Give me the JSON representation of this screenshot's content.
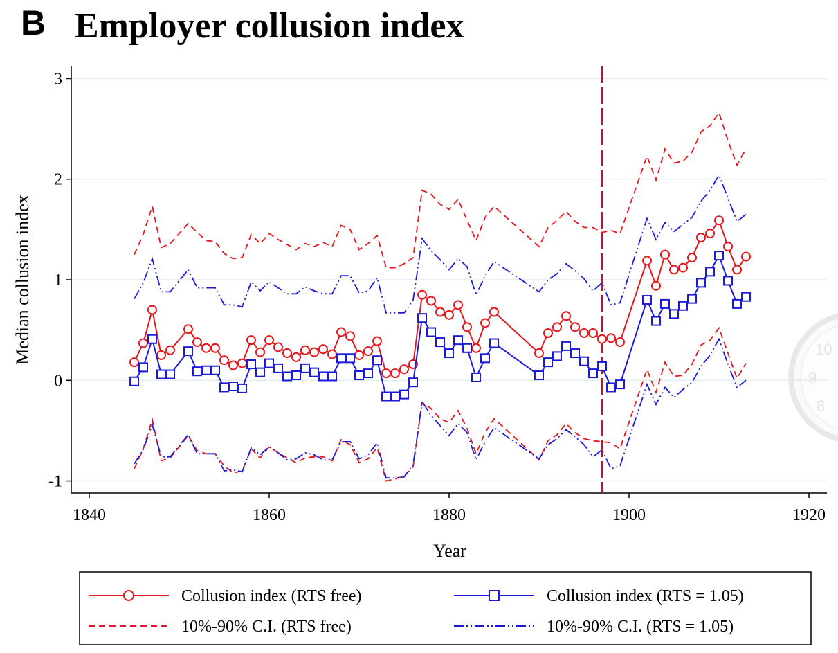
{
  "panel_letter": "B",
  "title": "Employer collusion index",
  "chart_data": {
    "type": "line",
    "title": "Employer collusion index",
    "xlabel": "Year",
    "ylabel": "Median collusion index",
    "xlim": [
      1838,
      1922
    ],
    "ylim": [
      -1.12,
      3.12
    ],
    "xticks": [
      1840,
      1860,
      1880,
      1900,
      1920
    ],
    "yticks": [
      -1,
      0,
      1,
      2,
      3
    ],
    "grid": "horizontal",
    "reference_line": {
      "x": 1897,
      "style": "dashed",
      "color": "#c8102e"
    },
    "legend_position": "bottom",
    "x": [
      1845,
      1846,
      1847,
      1848,
      1849,
      1851,
      1852,
      1853,
      1854,
      1855,
      1856,
      1857,
      1858,
      1859,
      1860,
      1861,
      1862,
      1863,
      1864,
      1865,
      1866,
      1867,
      1868,
      1869,
      1870,
      1871,
      1872,
      1873,
      1874,
      1875,
      1876,
      1877,
      1878,
      1879,
      1880,
      1881,
      1882,
      1883,
      1884,
      1885,
      1890,
      1891,
      1892,
      1893,
      1894,
      1895,
      1896,
      1897,
      1898,
      1899,
      1902,
      1903,
      1904,
      1905,
      1906,
      1907,
      1908,
      1909,
      1910,
      1911,
      1912,
      1913
    ],
    "series": [
      {
        "name": "Collusion index (RTS free)",
        "color": "#e8151b",
        "style": "solid",
        "marker": "circle",
        "values": [
          0.18,
          0.37,
          0.7,
          0.25,
          0.3,
          0.51,
          0.38,
          0.32,
          0.32,
          0.2,
          0.15,
          0.17,
          0.4,
          0.28,
          0.4,
          0.33,
          0.27,
          0.23,
          0.3,
          0.28,
          0.31,
          0.26,
          0.48,
          0.44,
          0.25,
          0.29,
          0.39,
          0.07,
          0.07,
          0.11,
          0.16,
          0.85,
          0.79,
          0.68,
          0.65,
          0.75,
          0.53,
          0.32,
          0.57,
          0.68,
          0.27,
          0.47,
          0.53,
          0.64,
          0.53,
          0.47,
          0.47,
          0.41,
          0.42,
          0.38,
          1.19,
          0.94,
          1.25,
          1.1,
          1.12,
          1.22,
          1.42,
          1.46,
          1.59,
          1.33,
          1.1,
          1.23
        ]
      },
      {
        "name": "Collusion index (RTS = 1.05)",
        "color": "#1a1adb",
        "style": "solid",
        "marker": "square",
        "values": [
          -0.01,
          0.13,
          0.41,
          0.06,
          0.06,
          0.29,
          0.09,
          0.1,
          0.1,
          -0.07,
          -0.06,
          -0.08,
          0.16,
          0.08,
          0.17,
          0.12,
          0.04,
          0.05,
          0.12,
          0.08,
          0.04,
          0.04,
          0.22,
          0.22,
          0.05,
          0.07,
          0.2,
          -0.16,
          -0.16,
          -0.14,
          -0.02,
          0.62,
          0.48,
          0.38,
          0.27,
          0.4,
          0.32,
          0.03,
          0.22,
          0.37,
          0.05,
          0.18,
          0.24,
          0.34,
          0.27,
          0.19,
          0.07,
          0.14,
          -0.07,
          -0.04,
          0.8,
          0.59,
          0.76,
          0.66,
          0.74,
          0.81,
          0.97,
          1.08,
          1.24,
          0.99,
          0.76,
          0.83
        ]
      },
      {
        "name": "10%-90% C.I. (RTS free)",
        "color": "#e8151b",
        "style": "dashed",
        "values_upper": [
          1.25,
          1.45,
          1.73,
          1.32,
          1.36,
          1.56,
          1.47,
          1.39,
          1.38,
          1.26,
          1.21,
          1.22,
          1.45,
          1.36,
          1.46,
          1.4,
          1.35,
          1.3,
          1.36,
          1.33,
          1.37,
          1.33,
          1.54,
          1.5,
          1.3,
          1.36,
          1.44,
          1.12,
          1.12,
          1.16,
          1.22,
          1.89,
          1.85,
          1.75,
          1.7,
          1.8,
          1.59,
          1.39,
          1.62,
          1.73,
          1.33,
          1.52,
          1.59,
          1.68,
          1.58,
          1.52,
          1.52,
          1.47,
          1.49,
          1.46,
          2.23,
          1.99,
          2.3,
          2.16,
          2.18,
          2.27,
          2.47,
          2.53,
          2.66,
          2.38,
          2.14,
          2.3
        ],
        "values_lower": [
          -0.88,
          -0.68,
          -0.39,
          -0.8,
          -0.77,
          -0.55,
          -0.7,
          -0.73,
          -0.73,
          -0.85,
          -0.92,
          -0.9,
          -0.68,
          -0.77,
          -0.66,
          -0.72,
          -0.77,
          -0.82,
          -0.77,
          -0.76,
          -0.76,
          -0.8,
          -0.59,
          -0.64,
          -0.82,
          -0.78,
          -0.67,
          -1.0,
          -0.98,
          -0.95,
          -0.86,
          -0.22,
          -0.28,
          -0.38,
          -0.42,
          -0.3,
          -0.48,
          -0.73,
          -0.52,
          -0.38,
          -0.79,
          -0.6,
          -0.54,
          -0.43,
          -0.52,
          -0.58,
          -0.6,
          -0.61,
          -0.62,
          -0.68,
          0.11,
          -0.12,
          0.18,
          0.04,
          0.05,
          0.16,
          0.35,
          0.4,
          0.52,
          0.27,
          0.02,
          0.17
        ]
      },
      {
        "name": "10%-90% C.I. (RTS = 1.05)",
        "color": "#1a1adb",
        "style": "dash-dot",
        "values_upper": [
          0.81,
          0.97,
          1.21,
          0.88,
          0.88,
          1.1,
          0.92,
          0.92,
          0.92,
          0.75,
          0.75,
          0.73,
          0.98,
          0.89,
          0.98,
          0.92,
          0.86,
          0.86,
          0.93,
          0.89,
          0.86,
          0.86,
          1.04,
          1.04,
          0.87,
          0.89,
          1.02,
          0.67,
          0.67,
          0.67,
          0.8,
          1.41,
          1.29,
          1.2,
          1.1,
          1.21,
          1.13,
          0.85,
          1.04,
          1.18,
          0.88,
          1.0,
          1.06,
          1.16,
          1.09,
          1.01,
          0.89,
          0.97,
          0.75,
          0.77,
          1.61,
          1.4,
          1.57,
          1.48,
          1.55,
          1.62,
          1.78,
          1.89,
          2.04,
          1.81,
          1.58,
          1.65
        ],
        "values_lower": [
          -0.83,
          -0.69,
          -0.44,
          -0.76,
          -0.76,
          -0.54,
          -0.73,
          -0.73,
          -0.73,
          -0.9,
          -0.89,
          -0.91,
          -0.67,
          -0.74,
          -0.66,
          -0.72,
          -0.79,
          -0.78,
          -0.72,
          -0.74,
          -0.79,
          -0.79,
          -0.61,
          -0.61,
          -0.78,
          -0.74,
          -0.62,
          -0.97,
          -0.97,
          -0.96,
          -0.84,
          -0.21,
          -0.35,
          -0.45,
          -0.55,
          -0.43,
          -0.52,
          -0.79,
          -0.61,
          -0.47,
          -0.78,
          -0.64,
          -0.58,
          -0.49,
          -0.56,
          -0.64,
          -0.76,
          -0.69,
          -0.88,
          -0.85,
          -0.04,
          -0.24,
          -0.07,
          -0.17,
          -0.09,
          -0.02,
          0.14,
          0.25,
          0.41,
          0.16,
          -0.07,
          0.0
        ]
      }
    ]
  },
  "legend": [
    {
      "label": "Collusion index (RTS free)",
      "color": "#e8151b",
      "style": "solid",
      "marker": "circle"
    },
    {
      "label": "Collusion index (RTS = 1.05)",
      "color": "#1a1adb",
      "style": "solid",
      "marker": "square"
    },
    {
      "label": "10%-90% C.I. (RTS free)",
      "color": "#e8151b",
      "style": "dashed"
    },
    {
      "label": "10%-90% C.I. (RTS = 1.05)",
      "color": "#1a1adb",
      "style": "dash-dot"
    }
  ]
}
